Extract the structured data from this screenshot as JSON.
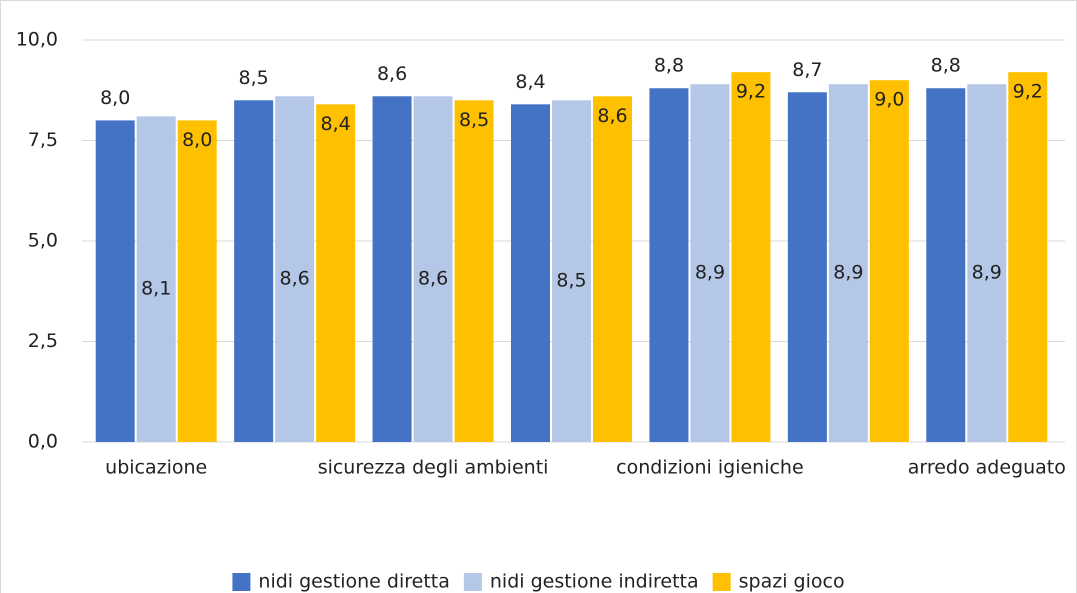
{
  "chart_data": {
    "type": "bar",
    "categories": [
      "ubicazione",
      null,
      "sicurezza degli ambienti",
      null,
      "condizioni igieniche",
      null,
      "arredo adeguato"
    ],
    "series": [
      {
        "name": "nidi gestione diretta",
        "color": "#4472c4",
        "values": [
          8.0,
          8.5,
          8.6,
          8.4,
          8.8,
          8.7,
          8.8
        ],
        "value_labels": [
          "8,0",
          "8,5",
          "8,6",
          "8,4",
          "8,8",
          "8,7",
          "8,8"
        ]
      },
      {
        "name": "nidi gestione indiretta",
        "color": "#b4c7e7",
        "values": [
          8.1,
          8.6,
          8.6,
          8.5,
          8.9,
          8.9,
          8.9
        ],
        "value_labels": [
          "8,1",
          "8,6",
          "8,6",
          "8,5",
          "8,9",
          "8,9",
          "8,9"
        ]
      },
      {
        "name": "spazi gioco",
        "color": "#ffc000",
        "values": [
          8.0,
          8.4,
          8.5,
          8.6,
          9.2,
          9.0,
          9.2
        ],
        "value_labels": [
          "8,0",
          "8,4",
          "8,5",
          "8,6",
          "9,2",
          "9,0",
          "9,2"
        ]
      }
    ],
    "ylim": [
      0,
      10
    ],
    "yticks": [
      {
        "value": 0,
        "label": "0,0"
      },
      {
        "value": 2.5,
        "label": "2,5"
      },
      {
        "value": 5,
        "label": "5,0"
      },
      {
        "value": 7.5,
        "label": "7,5"
      },
      {
        "value": 10,
        "label": "10,0"
      }
    ],
    "grid": true,
    "legend": "bottom"
  }
}
